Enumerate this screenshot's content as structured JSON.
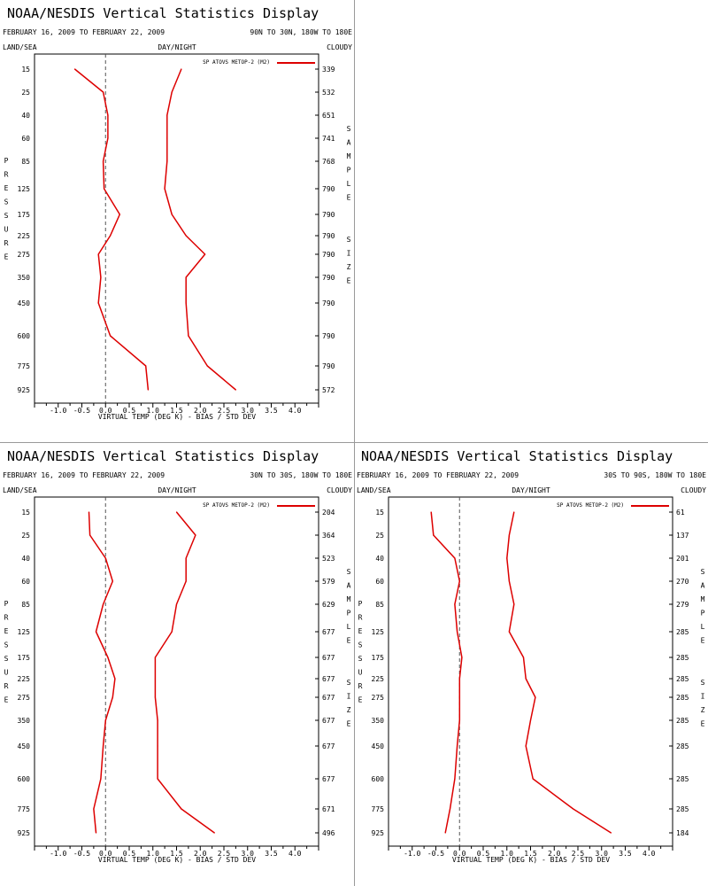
{
  "colors": {
    "series": "#dd0000",
    "frame": "#000000",
    "zero_line": "#555555"
  },
  "chart_data": [
    {
      "type": "line",
      "title": "NOAA/NESDIS Vertical Statistics Display",
      "date_range": "FEBRUARY 16, 2009 TO FEBRUARY 22, 2009",
      "region": "90N TO 30N, 180W TO 180E",
      "labels": {
        "land_sea": "LAND/SEA",
        "day_night": "DAY/NIGHT",
        "cloudy": "CLOUDY",
        "left_axis": "PRESSURE",
        "right_axis": "SAMPLE SIZE"
      },
      "xlabel": "VIRTUAL TEMP (DEG K) - BIAS / STD DEV",
      "xlim": [
        -1.5,
        4.5
      ],
      "xticks": [
        "-1.0",
        "-0.5",
        "0.0",
        "0.5",
        "1.0",
        "1.5",
        "2.0",
        "2.5",
        "3.0",
        "3.5",
        "4.0"
      ],
      "pressure_levels": [
        "15",
        "25",
        "40",
        "60",
        "85",
        "125",
        "175",
        "225",
        "275",
        "350",
        "450",
        "600",
        "775",
        "925"
      ],
      "sample_size": [
        "339",
        "532",
        "651",
        "741",
        "768",
        "790",
        "790",
        "790",
        "790",
        "790",
        "790",
        "790",
        "790",
        "572"
      ],
      "legend": "SP ATOVS METOP-2 (M2)",
      "series": [
        {
          "kind": "bias",
          "values": [
            -0.65,
            -0.05,
            0.05,
            0.05,
            -0.05,
            -0.03,
            0.3,
            0.1,
            -0.15,
            -0.1,
            -0.15,
            0.1,
            0.85,
            0.9
          ]
        },
        {
          "kind": "std_dev",
          "values": [
            1.6,
            1.4,
            1.3,
            1.3,
            1.3,
            1.25,
            1.4,
            1.7,
            2.1,
            1.7,
            1.7,
            1.75,
            2.15,
            2.75
          ]
        }
      ]
    },
    {
      "type": "line",
      "title": "NOAA/NESDIS Vertical Statistics Display",
      "date_range": "FEBRUARY 16, 2009 TO FEBRUARY 22, 2009",
      "region": "30N TO 30S, 180W TO 180E",
      "labels": {
        "land_sea": "LAND/SEA",
        "day_night": "DAY/NIGHT",
        "cloudy": "CLOUDY",
        "left_axis": "PRESSURE",
        "right_axis": "SAMPLE SIZE"
      },
      "xlabel": "VIRTUAL TEMP (DEG K) - BIAS / STD DEV",
      "xlim": [
        -1.5,
        4.5
      ],
      "xticks": [
        "-1.0",
        "-0.5",
        "0.0",
        "0.5",
        "1.0",
        "1.5",
        "2.0",
        "2.5",
        "3.0",
        "3.5",
        "4.0"
      ],
      "pressure_levels": [
        "15",
        "25",
        "40",
        "60",
        "85",
        "125",
        "175",
        "225",
        "275",
        "350",
        "450",
        "600",
        "775",
        "925"
      ],
      "sample_size": [
        "204",
        "364",
        "523",
        "579",
        "629",
        "677",
        "677",
        "677",
        "677",
        "677",
        "677",
        "677",
        "671",
        "496"
      ],
      "legend": "SP ATOVS METOP-2 (M2)",
      "series": [
        {
          "kind": "bias",
          "values": [
            -0.35,
            -0.33,
            0.0,
            0.15,
            -0.05,
            -0.2,
            0.05,
            0.2,
            0.15,
            0.0,
            -0.05,
            -0.1,
            -0.25,
            -0.2
          ]
        },
        {
          "kind": "std_dev",
          "values": [
            1.5,
            1.9,
            1.7,
            1.7,
            1.5,
            1.4,
            1.05,
            1.05,
            1.05,
            1.1,
            1.1,
            1.1,
            1.6,
            2.3
          ]
        }
      ]
    },
    {
      "type": "line",
      "title": "NOAA/NESDIS Vertical Statistics Display",
      "date_range": "FEBRUARY 16, 2009 TO FEBRUARY 22, 2009",
      "region": "30S TO 90S, 180W TO 180E",
      "labels": {
        "land_sea": "LAND/SEA",
        "day_night": "DAY/NIGHT",
        "cloudy": "CLOUDY",
        "left_axis": "PRESSURE",
        "right_axis": "SAMPLE SIZE"
      },
      "xlabel": "VIRTUAL TEMP (DEG K) - BIAS / STD DEV",
      "xlim": [
        -1.5,
        4.5
      ],
      "xticks": [
        "-1.0",
        "-0.5",
        "0.0",
        "0.5",
        "1.0",
        "1.5",
        "2.0",
        "2.5",
        "3.0",
        "3.5",
        "4.0"
      ],
      "pressure_levels": [
        "15",
        "25",
        "40",
        "60",
        "85",
        "125",
        "175",
        "225",
        "275",
        "350",
        "450",
        "600",
        "775",
        "925"
      ],
      "sample_size": [
        "61",
        "137",
        "201",
        "270",
        "279",
        "285",
        "285",
        "285",
        "285",
        "285",
        "285",
        "285",
        "285",
        "184"
      ],
      "legend": "SP ATOVS METOP-2 (M2)",
      "series": [
        {
          "kind": "bias",
          "values": [
            -0.6,
            -0.55,
            -0.1,
            0.0,
            -0.1,
            -0.05,
            0.05,
            0.0,
            0.0,
            0.0,
            -0.05,
            -0.1,
            -0.2,
            -0.3
          ]
        },
        {
          "kind": "std_dev",
          "values": [
            1.15,
            1.05,
            1.0,
            1.05,
            1.15,
            1.05,
            1.35,
            1.4,
            1.6,
            1.5,
            1.4,
            1.55,
            2.4,
            3.2
          ]
        }
      ]
    }
  ]
}
